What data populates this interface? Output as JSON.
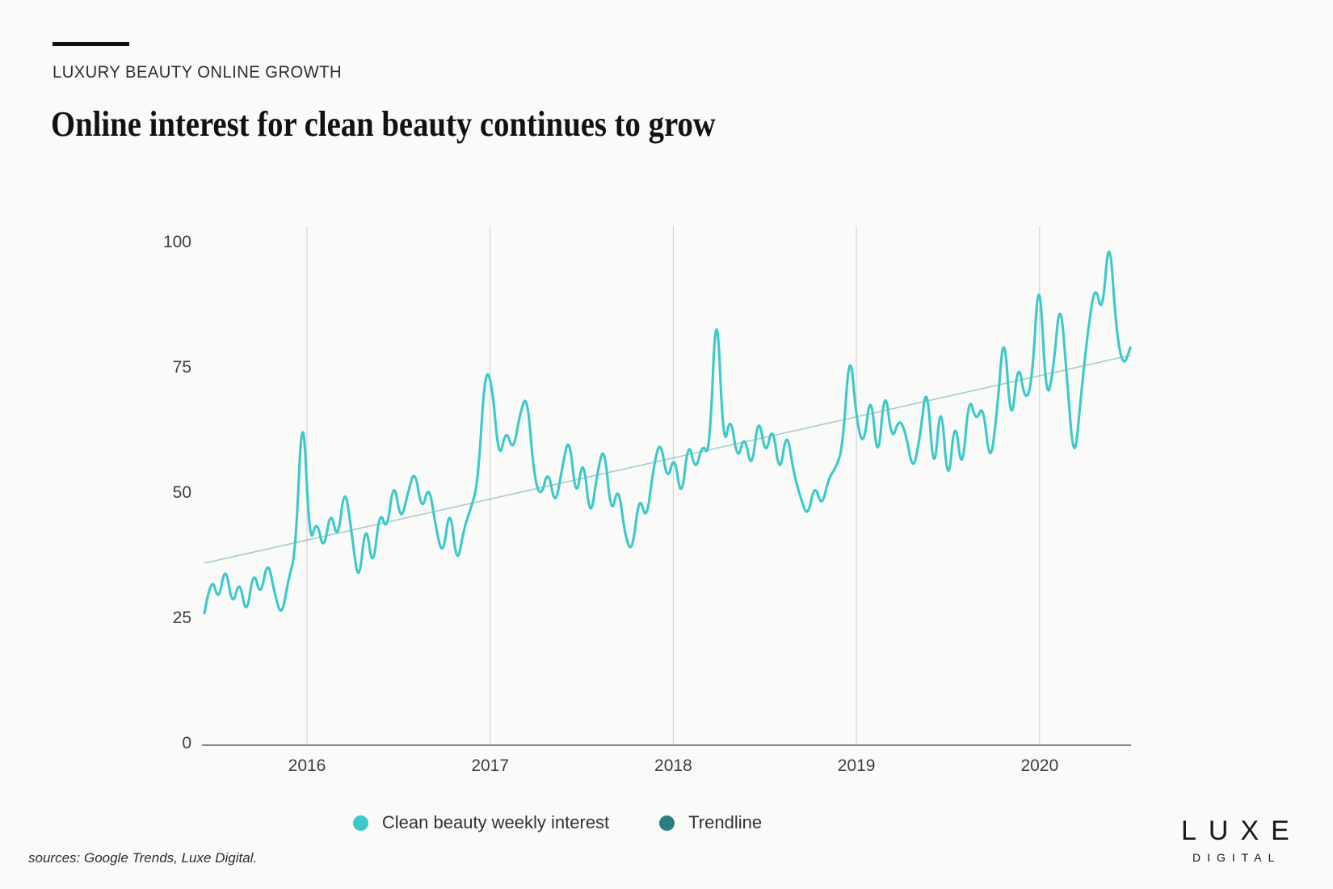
{
  "page": {
    "eyebrow": "LUXURY BEAUTY ONLINE GROWTH",
    "title": "Online interest for clean beauty continues to grow",
    "sources": "sources: Google Trends, Luxe Digital.",
    "logo": {
      "line1": "LUXE",
      "line2": "DIGITAL"
    }
  },
  "legend": [
    {
      "label": "Clean beauty weekly interest",
      "color": "#3cc9c7"
    },
    {
      "label": "Trendline",
      "color": "#2b7e80"
    }
  ],
  "chart_data": {
    "type": "line",
    "title": "Online interest for clean beauty continues to grow",
    "xlabel": "",
    "ylabel": "",
    "x_axis": {
      "ticks": [
        2016,
        2017,
        2018,
        2019,
        2020
      ],
      "range_years": [
        2015.44,
        2020.5
      ]
    },
    "y_axis": {
      "ticks": [
        0,
        25,
        50,
        75,
        100
      ],
      "range": [
        0,
        105
      ]
    },
    "grid": "vertical year gridlines only",
    "legend_position": "bottom-center",
    "series": [
      {
        "name": "Clean beauty weekly interest",
        "color": "#3cc9c7",
        "x_start_year": 2015.44,
        "x_step_years": 0.0383,
        "values": [
          26,
          34,
          28,
          36,
          27,
          33,
          25,
          35,
          29,
          37,
          30,
          25,
          33,
          38,
          70,
          39,
          45,
          38,
          47,
          40,
          52,
          42,
          31,
          45,
          34,
          47,
          42,
          53,
          44,
          50,
          55,
          46,
          52,
          43,
          37,
          48,
          35,
          43,
          47,
          52,
          75,
          72,
          56,
          63,
          58,
          66,
          70,
          53,
          49,
          55,
          47,
          55,
          62,
          48,
          58,
          44,
          54,
          60,
          45,
          52,
          41,
          38,
          50,
          44,
          55,
          61,
          52,
          58,
          48,
          61,
          54,
          60,
          57,
          91,
          58,
          66,
          56,
          62,
          54,
          66,
          57,
          64,
          53,
          63,
          54,
          49,
          45,
          52,
          47,
          53,
          55,
          59,
          80,
          64,
          59,
          71,
          55,
          72,
          60,
          65,
          62,
          54,
          61,
          73,
          52,
          70,
          50,
          66,
          53,
          70,
          64,
          68,
          55,
          66,
          84,
          62,
          77,
          68,
          72,
          96,
          68,
          74,
          90,
          72,
          55,
          70,
          83,
          92,
          85,
          103,
          82,
          75,
          79
        ]
      }
    ],
    "trendline": {
      "name": "Trendline",
      "legend_color": "#2b7e80",
      "line_color": "#2b7e80",
      "line_opacity": 0.38,
      "x_years": [
        2015.44,
        2020.5
      ],
      "y_values": [
        36,
        77.5
      ]
    }
  }
}
